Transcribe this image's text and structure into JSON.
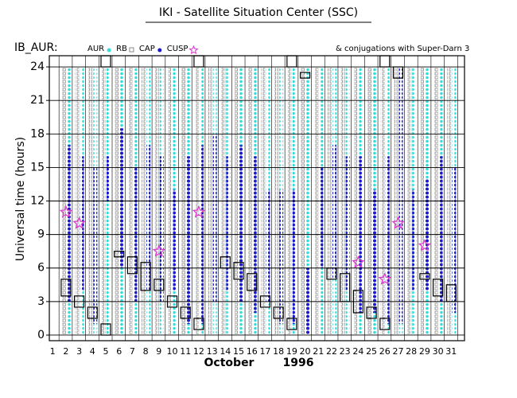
{
  "chart_data": {
    "type": "timeline",
    "title": "IKI - Satellite Situation Center (SSC)",
    "subtitle": "IB_AUR:",
    "annotation": "& conjugations with Super-Darn 3",
    "ylabel": "Universal time (hours)",
    "xlabel": "October",
    "xlabel_year": "1996",
    "x": [
      1,
      2,
      3,
      4,
      5,
      6,
      7,
      8,
      9,
      10,
      11,
      12,
      13,
      14,
      15,
      16,
      17,
      18,
      19,
      20,
      21,
      22,
      23,
      24,
      25,
      26,
      27,
      28,
      29,
      30,
      31
    ],
    "xlim": [
      0.75,
      32
    ],
    "ylim": [
      -0.5,
      25
    ],
    "yticks": [
      0,
      3,
      6,
      9,
      12,
      15,
      18,
      21,
      24
    ],
    "grid": true,
    "series": [
      {
        "name": "AUR",
        "color": "#33dddd",
        "values": [
          null,
          [
            0,
            24
          ],
          [
            0,
            24
          ],
          [
            0,
            24
          ],
          [
            0,
            24
          ],
          [
            0,
            24
          ],
          [
            0,
            24
          ],
          [
            0,
            24
          ],
          [
            0,
            24
          ],
          [
            0,
            24
          ],
          [
            0,
            24
          ],
          [
            0,
            24
          ],
          [
            0,
            24
          ],
          [
            0,
            24
          ],
          [
            0,
            24
          ],
          [
            0,
            24
          ],
          [
            0,
            24
          ],
          [
            0,
            24
          ],
          [
            0,
            24
          ],
          [
            0,
            24
          ],
          [
            0,
            24
          ],
          [
            0,
            24
          ],
          [
            0,
            24
          ],
          [
            0,
            24
          ],
          [
            0,
            24
          ],
          [
            0,
            24
          ],
          [
            0,
            24
          ],
          [
            0,
            24
          ],
          [
            0,
            24
          ],
          [
            0,
            24
          ],
          [
            0,
            24
          ]
        ]
      },
      {
        "name": "RB",
        "color": "#888888",
        "values": [
          null,
          [
            0,
            24
          ],
          [
            0,
            24
          ],
          [
            0,
            24
          ],
          [
            0,
            24
          ],
          [
            0,
            24
          ],
          [
            0,
            24
          ],
          [
            0,
            24
          ],
          [
            0,
            24
          ],
          [
            0,
            24
          ],
          [
            0,
            24
          ],
          [
            0,
            24
          ],
          [
            0,
            24
          ],
          [
            0,
            24
          ],
          [
            0,
            24
          ],
          [
            0,
            24
          ],
          [
            0,
            24
          ],
          [
            0,
            24
          ],
          [
            0,
            24
          ],
          [
            0,
            24
          ],
          [
            0,
            24
          ],
          [
            0,
            24
          ],
          [
            0,
            24
          ],
          [
            0,
            24
          ],
          [
            0,
            24
          ],
          [
            0,
            24
          ],
          [
            0,
            24
          ],
          [
            0,
            24
          ],
          [
            0,
            24
          ],
          [
            0,
            24
          ],
          [
            0,
            24
          ]
        ]
      },
      {
        "name": "CAP",
        "color": "#1a1acc",
        "values": [
          null,
          [
            3,
            17
          ],
          [
            4,
            16
          ],
          [
            1,
            15
          ],
          [
            12,
            16
          ],
          [
            6,
            18.5
          ],
          [
            3,
            15
          ],
          [
            4,
            17
          ],
          [
            3,
            16
          ],
          [
            4,
            13
          ],
          [
            1,
            16
          ],
          [
            1,
            17
          ],
          [
            3,
            18
          ],
          [
            4,
            16
          ],
          [
            3,
            17
          ],
          [
            2,
            16
          ],
          [
            3,
            13
          ],
          [
            1,
            13
          ],
          [
            1,
            13
          ],
          [
            0,
            6
          ],
          [
            6,
            15
          ],
          [
            5,
            17
          ],
          [
            4,
            16
          ],
          [
            2,
            16
          ],
          [
            2,
            13
          ],
          [
            1,
            16
          ],
          [
            1,
            24
          ],
          [
            4,
            13
          ],
          [
            4,
            14
          ],
          [
            3,
            16
          ],
          [
            2,
            15
          ]
        ]
      },
      {
        "name": "CUSP",
        "color": "#dd33cc",
        "x": [
          2,
          3,
          9,
          12,
          24,
          26,
          27,
          29
        ],
        "values": [
          11,
          10,
          7.5,
          11,
          6.5,
          5,
          10,
          8
        ]
      }
    ],
    "boxes": [
      {
        "x": 2,
        "y": [
          3.5,
          5
        ]
      },
      {
        "x": 3,
        "y": [
          2.5,
          3.5
        ]
      },
      {
        "x": 4,
        "y": [
          1.5,
          2.5
        ]
      },
      {
        "x": 5,
        "y": [
          0,
          1
        ]
      },
      {
        "x": 5,
        "y": [
          24,
          25
        ]
      },
      {
        "x": 6,
        "y": [
          7,
          7.5
        ]
      },
      {
        "x": 7,
        "y": [
          5.5,
          7
        ]
      },
      {
        "x": 8,
        "y": [
          4,
          6.5
        ]
      },
      {
        "x": 9,
        "y": [
          4,
          5
        ]
      },
      {
        "x": 10,
        "y": [
          2.5,
          3.5
        ]
      },
      {
        "x": 11,
        "y": [
          1.5,
          2.5
        ]
      },
      {
        "x": 12,
        "y": [
          0.5,
          1.5
        ]
      },
      {
        "x": 12,
        "y": [
          24,
          25
        ]
      },
      {
        "x": 14,
        "y": [
          6,
          7
        ]
      },
      {
        "x": 15,
        "y": [
          5,
          6.5
        ]
      },
      {
        "x": 16,
        "y": [
          4,
          5.5
        ]
      },
      {
        "x": 17,
        "y": [
          2.5,
          3.5
        ]
      },
      {
        "x": 18,
        "y": [
          1.5,
          2.5
        ]
      },
      {
        "x": 19,
        "y": [
          0.5,
          1.5
        ]
      },
      {
        "x": 19,
        "y": [
          24,
          25
        ]
      },
      {
        "x": 20,
        "y": [
          23,
          23.5
        ]
      },
      {
        "x": 22,
        "y": [
          5,
          6
        ]
      },
      {
        "x": 23,
        "y": [
          3,
          5.5
        ]
      },
      {
        "x": 24,
        "y": [
          2,
          4
        ]
      },
      {
        "x": 25,
        "y": [
          1.5,
          2.5
        ]
      },
      {
        "x": 26,
        "y": [
          0.5,
          1.5
        ]
      },
      {
        "x": 26,
        "y": [
          24,
          25
        ]
      },
      {
        "x": 27,
        "y": [
          23,
          24
        ]
      },
      {
        "x": 29,
        "y": [
          5,
          5.5
        ]
      },
      {
        "x": 30,
        "y": [
          3.5,
          5
        ]
      },
      {
        "x": 31,
        "y": [
          3,
          4.5
        ]
      }
    ]
  }
}
